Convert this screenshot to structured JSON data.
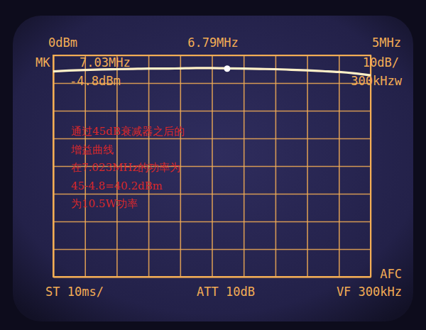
{
  "chart_data": {
    "type": "line",
    "ref_level": "0dBm",
    "center": "6.79MHz",
    "span": "5MHz",
    "marker_label": "MK",
    "marker_freq": "7.03MHz",
    "marker_level": "-4.8dBm",
    "scale_label": "10dB/",
    "rbw": "300kHzw",
    "sweep": "ST 10ms/",
    "attenuation": "ATT 10dB",
    "video_filter": "VF 300kHz",
    "afc": "AFC",
    "annotation": [
      "通过45dB衰减器之后的",
      "增益曲线",
      "在7.023MHz的功率为",
      "45-4.8=40.2dBm",
      "为10.5W功率"
    ],
    "x": [
      4.29,
      4.54,
      4.79,
      5.04,
      5.29,
      5.54,
      5.79,
      6.04,
      6.29,
      6.54,
      6.79,
      7.04,
      7.29,
      7.54,
      7.79,
      8.04,
      8.29,
      8.54,
      8.79,
      9.04,
      9.29
    ],
    "values": [
      -5.8,
      -5.5,
      -5.3,
      -5.1,
      -5.0,
      -4.9,
      -4.8,
      -4.8,
      -4.7,
      -4.6,
      -4.6,
      -4.7,
      -4.8,
      -4.9,
      -5.0,
      -5.2,
      -5.4,
      -5.7,
      -6.0,
      -6.5,
      -7.2
    ],
    "marker_x": 7.03,
    "marker_y": -4.8,
    "color": "#fff1c8",
    "xlim": [
      4.29,
      9.29
    ],
    "ylim": [
      -80,
      0
    ],
    "xticks": [
      4.29,
      4.79,
      5.29,
      5.79,
      6.29,
      6.79,
      7.29,
      7.79,
      8.29,
      8.79,
      9.29
    ],
    "yticks": [
      -80,
      -70,
      -60,
      -50,
      -40,
      -30,
      -20,
      -10,
      0
    ],
    "grid": true,
    "tick_labels": false
  }
}
